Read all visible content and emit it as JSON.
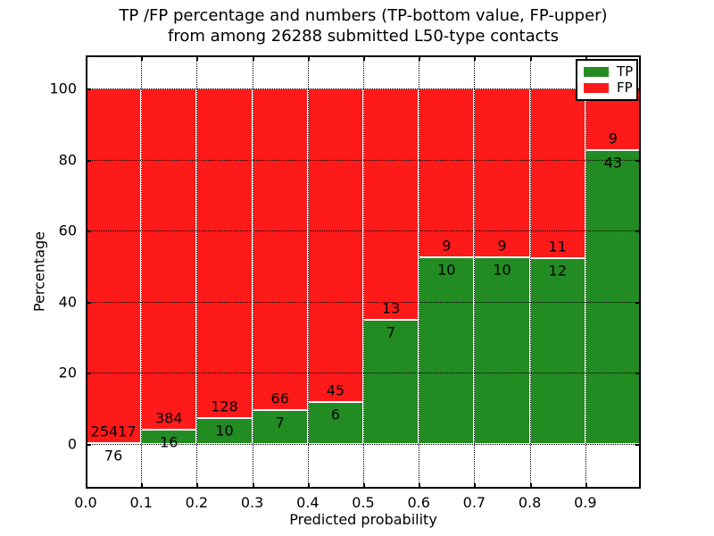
{
  "figure": {
    "title_line1": "TP /FP percentage and numbers (TP-bottom value, FP-upper)",
    "title_line2": "from among 26288 submitted L50-type contacts"
  },
  "chart_data": {
    "type": "bar",
    "stacked": true,
    "normalized": "each bin TP+FP scaled to 100%, labels show raw counts",
    "title": "TP /FP percentage and numbers (TP-bottom value, FP-upper) from among 26288 submitted L50-type contacts",
    "xlabel": "Predicted probability",
    "ylabel": "Percentage",
    "x_tick_labels": [
      "0.0",
      "0.1",
      "0.2",
      "0.3",
      "0.4",
      "0.5",
      "0.6",
      "0.7",
      "0.8",
      "0.9"
    ],
    "y_tick_values": [
      0,
      20,
      40,
      60,
      80,
      100
    ],
    "xlim": [
      0.0,
      1.0
    ],
    "ylim": [
      -12.6,
      109.4
    ],
    "grid": true,
    "grid_style": "dotted",
    "bin_width": 0.1,
    "categories": [
      "0.0-0.1",
      "0.1-0.2",
      "0.2-0.3",
      "0.3-0.4",
      "0.4-0.5",
      "0.5-0.6",
      "0.6-0.7",
      "0.7-0.8",
      "0.8-0.9",
      "0.9-1.0"
    ],
    "series": [
      {
        "name": "TP",
        "color": "#228B22",
        "counts": [
          76,
          16,
          10,
          7,
          6,
          7,
          10,
          10,
          12,
          43
        ]
      },
      {
        "name": "FP",
        "color": "#FF1A1A",
        "counts": [
          25417,
          384,
          128,
          66,
          45,
          13,
          9,
          9,
          11,
          9
        ]
      }
    ],
    "legend": {
      "position": "upper right",
      "entries": [
        {
          "label": "TP",
          "color": "#228B22"
        },
        {
          "label": "FP",
          "color": "#FF1A1A"
        }
      ]
    },
    "colors": {
      "tp": "#228B22",
      "fp": "#FF1A1A",
      "grid": "#000000",
      "bar_edge": "#ffffff",
      "background": "#ffffff",
      "text": "#000000"
    }
  }
}
